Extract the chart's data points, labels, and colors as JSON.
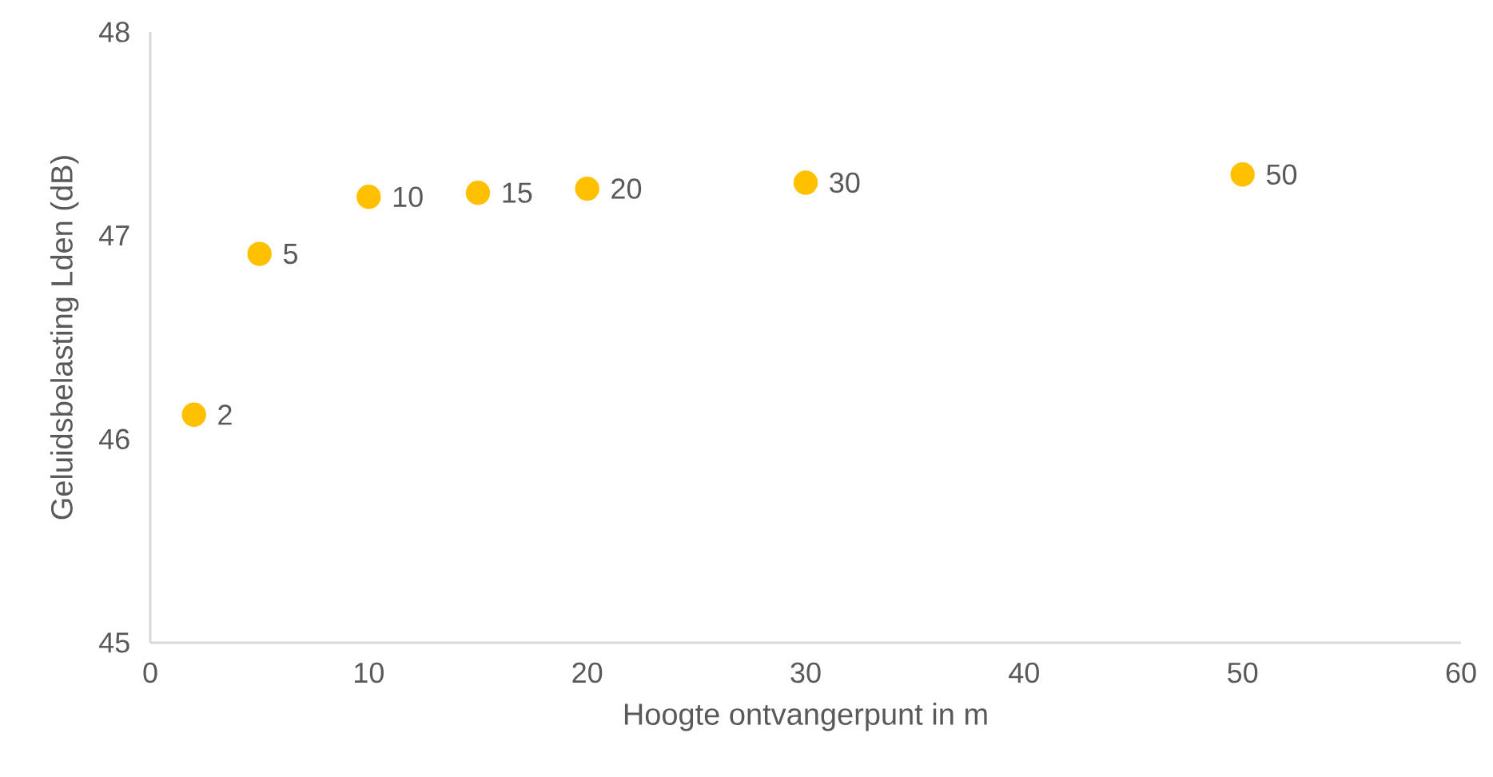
{
  "chart_data": {
    "type": "scatter",
    "xlabel": "Hoogte ontvangerpunt in m",
    "ylabel": "Geluidsbelasting Lden (dB)",
    "x": [
      2,
      5,
      10,
      15,
      20,
      30,
      50
    ],
    "values": [
      46.12,
      46.91,
      47.19,
      47.21,
      47.23,
      47.26,
      47.3
    ],
    "annotations": [
      {
        "text": "2",
        "x": 2,
        "y": 46.12
      },
      {
        "text": "5",
        "x": 5,
        "y": 46.91
      },
      {
        "text": "10",
        "x": 10,
        "y": 47.19
      },
      {
        "text": "15",
        "x": 15,
        "y": 47.21
      },
      {
        "text": "20",
        "x": 20,
        "y": 47.23
      },
      {
        "text": "30",
        "x": 30,
        "y": 47.26
      },
      {
        "text": "50",
        "x": 50,
        "y": 47.3
      }
    ],
    "color": "#ffc000",
    "marker": "circle",
    "xlim": [
      0,
      60
    ],
    "xticks": [
      0,
      10,
      20,
      30,
      40,
      50,
      60
    ],
    "ylim": [
      45,
      48
    ],
    "yticks": [
      45,
      46,
      47,
      48
    ]
  }
}
